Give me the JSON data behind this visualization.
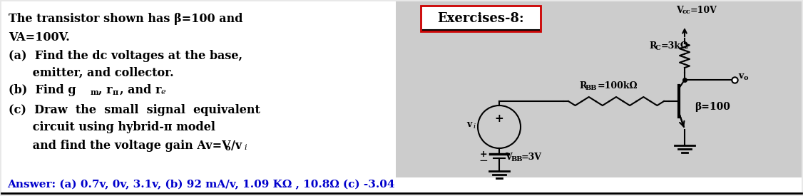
{
  "bg_color": "#e8e8e8",
  "left_bg": "#ffffff",
  "right_bg": "#cccccc",
  "title_box_color": "#cc0000",
  "title_text": "Exercises-8:",
  "answer_color": "#0000cc",
  "text_color": "#000000",
  "line1": "The transistor shown has β=100 and",
  "line2": "VA=100V.",
  "line3a": "(a)  Find the dc voltages at the base,",
  "line3b": "      emitter, and collector.",
  "line5a": "(c)  Draw  the  small  signal  equivalent",
  "line5b": "      circuit using hybrid-π model",
  "answer_line": "Answer: (a) 0.7v, 0v, 3.1v, (b) 92 mA/v, 1.09 KΩ , 10.8Ω (c) -3.04",
  "beta_label": "β=100"
}
